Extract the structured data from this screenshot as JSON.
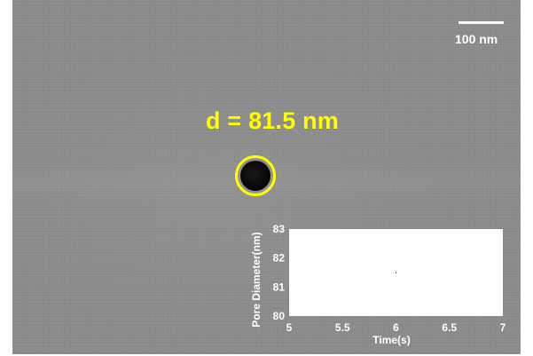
{
  "scale_bar": {
    "label": "100 nm"
  },
  "measurement": {
    "label": "d = 81.5 nm"
  },
  "chart_data": {
    "type": "scatter",
    "title": "",
    "xlabel": "Time(s)",
    "ylabel": "Pore Diameter(nm)",
    "xlim": [
      5,
      7
    ],
    "ylim": [
      80,
      83
    ],
    "x_ticks": [
      5,
      5.5,
      6,
      6.5,
      7
    ],
    "y_ticks": [
      80,
      81,
      82,
      83
    ],
    "points": [
      {
        "x": 6.0,
        "y": 81.5
      }
    ],
    "grid": false
  },
  "colors": {
    "annotation": "#ffff00",
    "axis_text": "#ffffff",
    "plot_background": "#ffffff",
    "point": "#000000"
  }
}
